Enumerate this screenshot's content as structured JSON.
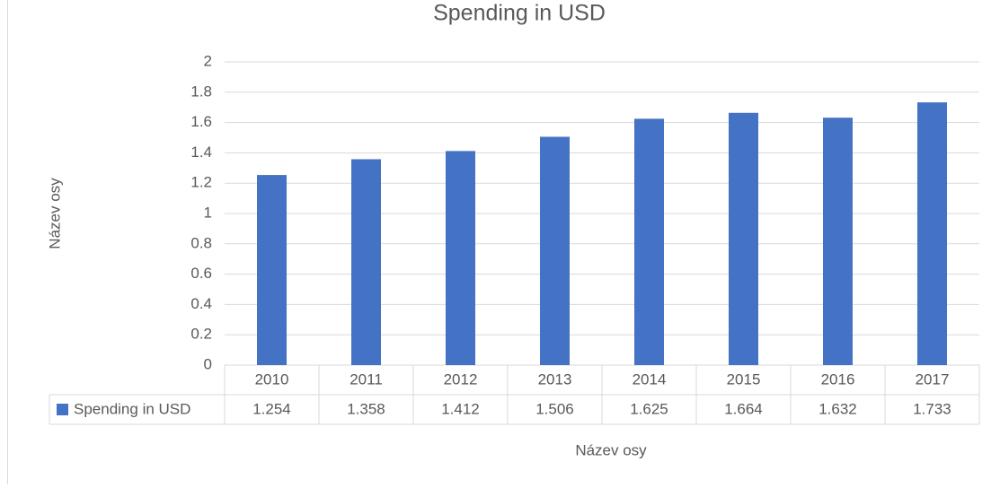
{
  "chart_data": {
    "type": "bar",
    "title": "Spending in USD",
    "categories": [
      "2010",
      "2011",
      "2012",
      "2013",
      "2014",
      "2015",
      "2016",
      "2017"
    ],
    "series": [
      {
        "name": "Spending in USD",
        "color": "#4472c4",
        "values": [
          1.254,
          1.358,
          1.412,
          1.506,
          1.625,
          1.664,
          1.632,
          1.733
        ]
      }
    ],
    "ylim": [
      0,
      2
    ],
    "yticks": [
      0,
      0.2,
      0.4,
      0.6,
      0.8,
      1,
      1.2,
      1.4,
      1.6,
      1.8,
      2
    ],
    "x_label": "Název osy",
    "y_label": "Název osy",
    "grid": true,
    "data_table": true
  }
}
